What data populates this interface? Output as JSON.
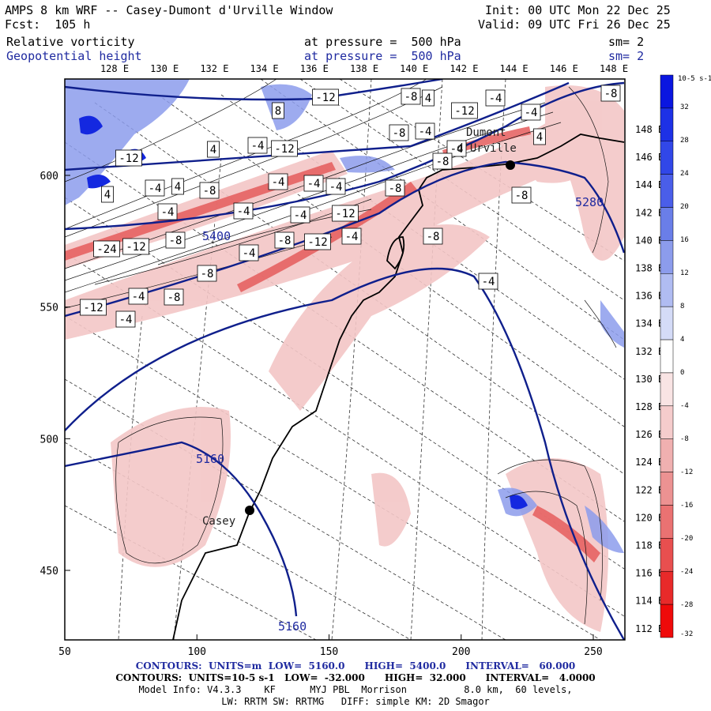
{
  "header": {
    "title": "AMPS 8 km WRF -- Casey-Dumont d'Urville Window",
    "fcst": "Fcst:  105 h",
    "init": "Init: 00 UTC Mon 22 Dec 25",
    "valid": "Valid: 09 UTC Fri 26 Dec 25",
    "field1_name": "Relative vorticity",
    "field1_level": "at pressure =  500 hPa",
    "field1_sm": "sm= 2",
    "field2_name": "Geopotential height",
    "field2_level": "at pressure =  500 hPa",
    "field2_sm": "sm= 2"
  },
  "top_lon_labels": [
    "128 E",
    "130 E",
    "132 E",
    "134 E",
    "136 E",
    "138 E",
    "140 E",
    "142 E",
    "144 E",
    "146 E",
    "148 E"
  ],
  "right_lon_labels": [
    "148 E",
    "146 E",
    "144 E",
    "142 E",
    "140 E",
    "138 E",
    "136 E",
    "134 E",
    "132 E",
    "130 E",
    "128 E",
    "126 E",
    "124 E",
    "122 E",
    "120 E",
    "118 E",
    "116 E",
    "114 E",
    "112 E"
  ],
  "x_ticks": [
    "50",
    "100",
    "150",
    "200",
    "250"
  ],
  "y_ticks": [
    "600",
    "550",
    "500",
    "450"
  ],
  "stations": [
    {
      "name": "Casey",
      "x": 120,
      "y": 473
    },
    {
      "name": "Dumont",
      "name2": "d'Urville",
      "x": 220,
      "y": 604
    }
  ],
  "height_labels": [
    "5160",
    "5160",
    "5280",
    "5400"
  ],
  "vort_labels": [
    "-12",
    "-8",
    "-4",
    "4",
    "8",
    "-12",
    "-4",
    "-8",
    "4",
    "-4",
    "-12",
    "-8",
    "-4",
    "-4",
    "4",
    "-8",
    "-12",
    "-4",
    "4",
    "-8",
    "-24",
    "-12",
    "-8",
    "-4",
    "-8",
    "-12",
    "-4",
    "-4",
    "-4",
    "-4",
    "-8",
    "-8",
    "-4",
    "-12",
    "-8",
    "-4",
    "-4",
    "-4",
    "4",
    "-8",
    "-12",
    "-4",
    "-8",
    "-4"
  ],
  "colorbar": {
    "unit": "10-5 s-1",
    "labels": [
      "32",
      "28",
      "24",
      "20",
      "16",
      "12",
      "8",
      "4",
      "0",
      "-4",
      "-8",
      "-12",
      "-16",
      "-20",
      "-24",
      "-28",
      "-32"
    ],
    "colors": [
      "#0a16e0",
      "#1d31e6",
      "#3147e8",
      "#4a5ee9",
      "#6a7ee8",
      "#8c9cec",
      "#b0bcf2",
      "#d4dbf7",
      "#ffffff",
      "#f9e4e4",
      "#f5cccc",
      "#f0b0b0",
      "#ec9292",
      "#ea7272",
      "#e84f4f",
      "#e82a2a",
      "#ef0a0a"
    ]
  },
  "footer": {
    "line1": "CONTOURS:  UNITS=m  LOW=  5160.0      HIGH=  5400.0      INTERVAL=   60.000",
    "line2": "CONTOURS:  UNITS=10-5 s-1   LOW=  -32.000      HIGH=  32.000      INTERVAL=   4.0000",
    "line3": "Model Info: V4.3.3    KF      MYJ PBL  Morrison          8.0 km,  60 levels,",
    "line4": "LW: RRTM SW: RRTMG   DIFF: simple KM: 2D Smagor"
  },
  "colors": {
    "height_contour": "#0f1f8c",
    "coast": "#000000",
    "pos_fill": "#e8a0a0",
    "neg_fill": "#7f8fe0"
  }
}
